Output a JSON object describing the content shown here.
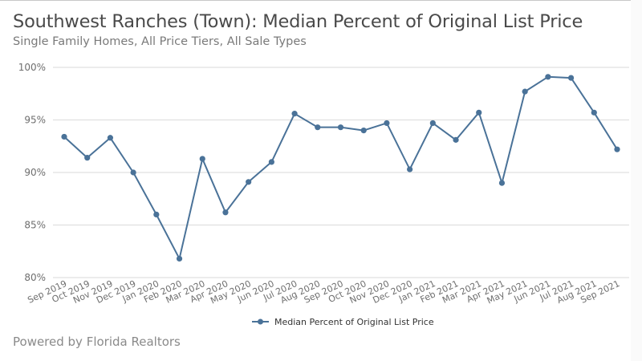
{
  "header": {
    "title": "Southwest Ranches (Town): Median Percent of Original List Price",
    "subtitle": "Single Family Homes, All Price Tiers, All Sale Types"
  },
  "footer": {
    "text": "Powered by Florida Realtors"
  },
  "colors": {
    "series": "#4a7298",
    "grid": "#e0e0e0",
    "axis_text": "#6e6e6e"
  },
  "chart_data": {
    "type": "line",
    "title": "Southwest Ranches (Town): Median Percent of Original List Price",
    "subtitle": "Single Family Homes, All Price Tiers, All Sale Types",
    "xlabel": "",
    "ylabel": "",
    "ylim": [
      80,
      100
    ],
    "yticks": [
      "80%",
      "85%",
      "90%",
      "95%",
      "100%"
    ],
    "grid": true,
    "legend_position": "bottom",
    "categories": [
      "Sep 2019",
      "Oct 2019",
      "Nov 2019",
      "Dec 2019",
      "Jan 2020",
      "Feb 2020",
      "Mar 2020",
      "Apr 2020",
      "May 2020",
      "Jun 2020",
      "Jul 2020",
      "Aug 2020",
      "Sep 2020",
      "Oct 2020",
      "Nov 2020",
      "Dec 2020",
      "Jan 2021",
      "Feb 2021",
      "Mar 2021",
      "Apr 2021",
      "May 2021",
      "Jun 2021",
      "Jul 2021",
      "Aug 2021",
      "Sep 2021"
    ],
    "series": [
      {
        "name": "Median Percent of Original List Price",
        "values": [
          93.4,
          91.4,
          93.3,
          90.0,
          86.0,
          81.8,
          91.3,
          86.2,
          89.1,
          91.0,
          95.6,
          94.3,
          94.3,
          94.0,
          94.7,
          90.3,
          94.7,
          93.1,
          95.7,
          89.0,
          97.7,
          99.1,
          99.0,
          95.7,
          92.2
        ]
      }
    ]
  }
}
